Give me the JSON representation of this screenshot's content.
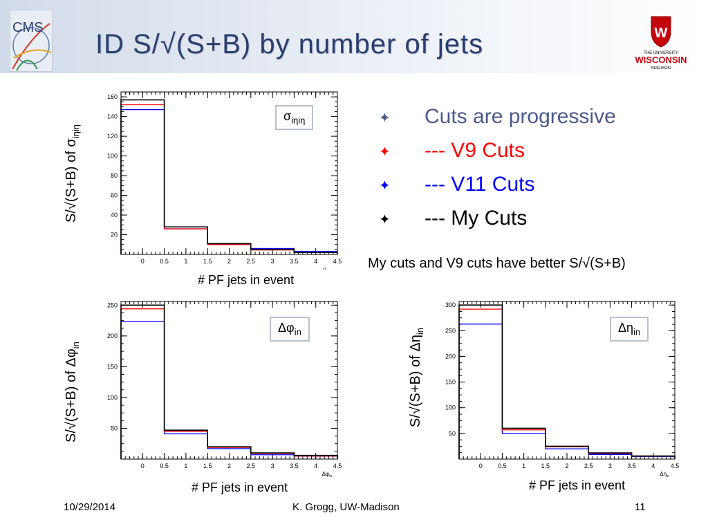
{
  "slide": {
    "title": "ID S/√(S+B) by number of jets",
    "logo_left_text": "CMS",
    "logo_right_lines": [
      "THE UNIVERSITY",
      "WISCONSIN",
      "MADISON"
    ],
    "footer_date": "10/29/2014",
    "footer_author": "K. Grogg, UW-Madison",
    "footer_page": "11"
  },
  "bullets": [
    {
      "text": "Cuts are progressive",
      "color": "#4a5a8c"
    },
    {
      "text": "--- V9 Cuts",
      "color": "#ff0000"
    },
    {
      "text": "--- V11 Cuts",
      "color": "#0000ff"
    },
    {
      "text": "--- My Cuts",
      "color": "#000000"
    }
  ],
  "note": "My cuts and V9 cuts have better S/√(S+B)",
  "colors": {
    "v9": "#ff0000",
    "v11": "#0000ff",
    "mine": "#000000",
    "accent": "#2a3e6e"
  },
  "chart_data": [
    {
      "type": "histogram",
      "ylabel": "S/√(S+B) of σ",
      "ylabel_sub": "iηiη",
      "xlabel": "# PF jets in event",
      "legend_main": "σ",
      "legend_sub": "iηiη",
      "axis_corner_label": "σ",
      "axis_corner_sub": "iηiη",
      "bin_edges": [
        -0.5,
        0.5,
        1.5,
        2.5,
        3.5,
        4.5
      ],
      "xlim": [
        -0.5,
        4.5
      ],
      "ylim": [
        0,
        165
      ],
      "xticks": [
        0,
        0.5,
        1,
        1.5,
        2,
        2.5,
        3,
        3.5,
        4,
        4.5
      ],
      "yticks": [
        20,
        40,
        60,
        80,
        100,
        120,
        140,
        160
      ],
      "series": [
        {
          "key": "mine",
          "values": [
            157,
            28,
            11,
            5,
            2
          ]
        },
        {
          "key": "v9",
          "values": [
            152,
            26,
            10,
            4.5,
            2
          ]
        },
        {
          "key": "v11",
          "values": [
            147,
            26,
            10,
            6,
            3
          ]
        }
      ]
    },
    {
      "type": "histogram",
      "ylabel": "S/√(S+B) of Δφ",
      "ylabel_sub": "in",
      "xlabel": "# PF jets in event",
      "legend_main": "Δφ",
      "legend_sub": "in",
      "axis_corner_label": "Δφ",
      "axis_corner_sub": "in",
      "bin_edges": [
        -0.5,
        0.5,
        1.5,
        2.5,
        3.5,
        4.5
      ],
      "xlim": [
        -0.5,
        4.5
      ],
      "ylim": [
        0,
        256
      ],
      "xticks": [
        0,
        0.5,
        1,
        1.5,
        2,
        2.5,
        3,
        3.5,
        4,
        4.5
      ],
      "yticks": [
        50,
        100,
        150,
        200,
        250
      ],
      "series": [
        {
          "key": "mine",
          "values": [
            250,
            47,
            20,
            10,
            6
          ]
        },
        {
          "key": "v9",
          "values": [
            244,
            45,
            19,
            9,
            5
          ]
        },
        {
          "key": "v11",
          "values": [
            223,
            41,
            17,
            7,
            5
          ]
        }
      ]
    },
    {
      "type": "histogram",
      "ylabel": "S/√(S+B) of Δη",
      "ylabel_sub": "in",
      "xlabel": "# PF jets in event",
      "legend_main": "Δη",
      "legend_sub": "in",
      "axis_corner_label": "Δη",
      "axis_corner_sub": "in",
      "bin_edges": [
        -0.5,
        0.5,
        1.5,
        2.5,
        3.5,
        4.5
      ],
      "xlim": [
        -0.5,
        4.5
      ],
      "ylim": [
        0,
        307
      ],
      "xticks": [
        0,
        0.5,
        1,
        1.5,
        2,
        2.5,
        3,
        3.5,
        4,
        4.5
      ],
      "yticks": [
        50,
        100,
        150,
        200,
        250,
        300
      ],
      "series": [
        {
          "key": "mine",
          "values": [
            300,
            60,
            25,
            12,
            6
          ]
        },
        {
          "key": "v9",
          "values": [
            292,
            57,
            24,
            11,
            6
          ]
        },
        {
          "key": "v11",
          "values": [
            263,
            50,
            20,
            9,
            5
          ]
        }
      ]
    }
  ]
}
